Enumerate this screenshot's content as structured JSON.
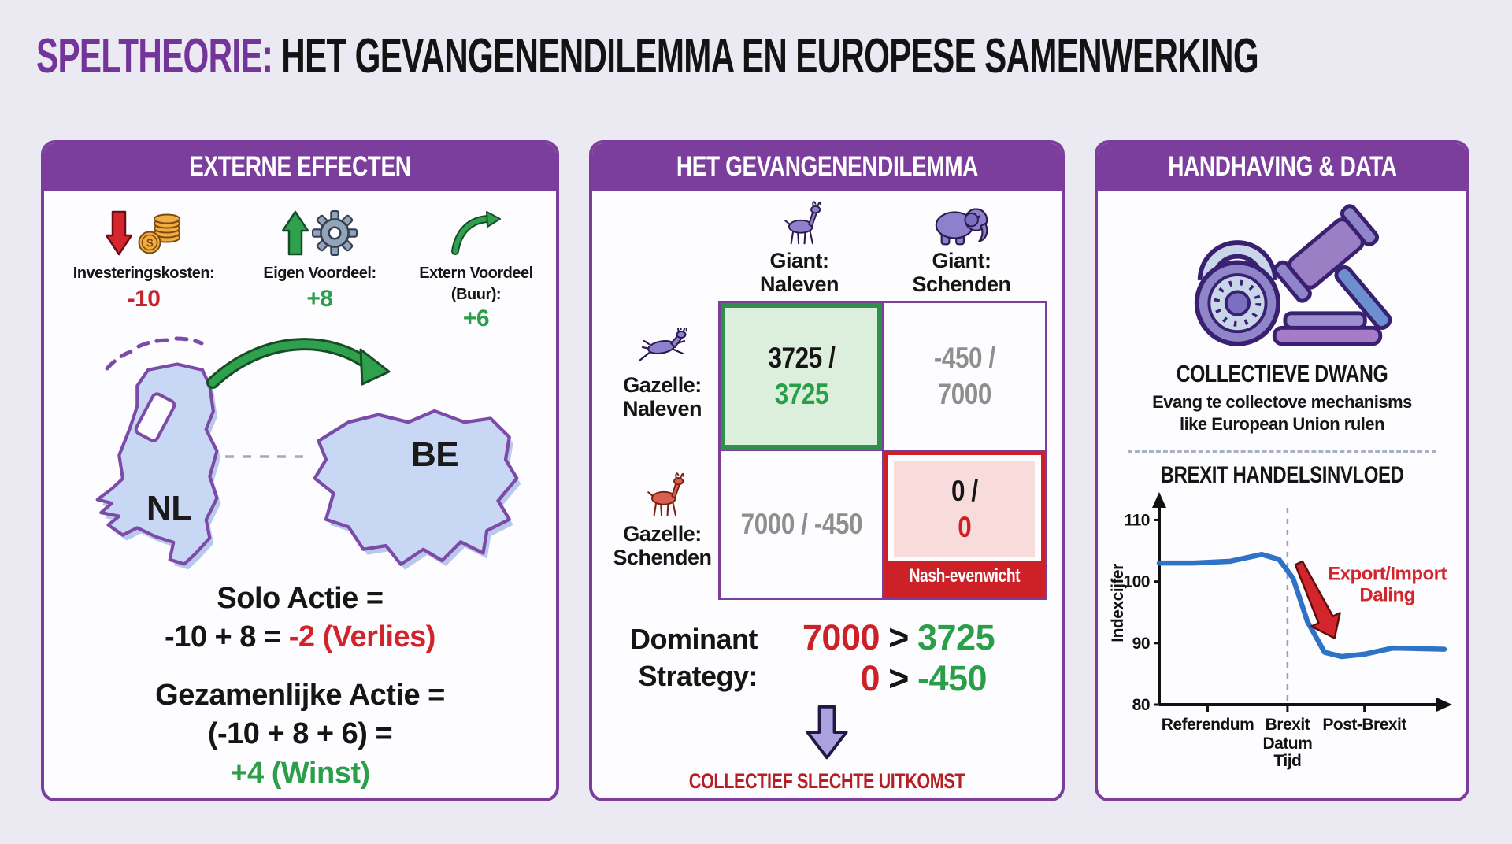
{
  "title": {
    "highlight": "SPELTHEORIE:",
    "rest": " HET GEVANGENENDILEMMA EN EUROPESE SAMENWERKING"
  },
  "colors": {
    "accent_purple": "#7B3E9D",
    "title_purple": "#74359A",
    "red": "#CE2127",
    "green": "#2B9E4A",
    "gray_payoff": "#8E8E8E",
    "cell_green_fill": "#DCEEDC",
    "cell_green_border": "#2F8F4C",
    "cell_red_fill": "#F8DBDB",
    "cell_red_border": "#CE2127",
    "line_blue": "#2E73C5",
    "map_fill": "#C8D8F4",
    "map_stroke": "#7C4BA8",
    "footer_red": "#B51F24",
    "background": "#EBE9F2"
  },
  "left_panel": {
    "header": "EXTERNE EFFECTEN",
    "factors": [
      {
        "label_line1": "Investeringskosten:",
        "label_line2": "",
        "value": "-10"
      },
      {
        "label_line1": "Eigen Voordeel:",
        "label_line2": "",
        "value": "+8"
      },
      {
        "label_line1": "Extern Voordeel",
        "label_line2": "(Buur):",
        "value": "+6"
      }
    ],
    "maps": {
      "left_label": "NL",
      "right_label": "BE"
    },
    "solo": {
      "line1": "Solo Actie =",
      "line2_black": "-10 + 8 = ",
      "line2_red": "-2 (Verlies)"
    },
    "joint": {
      "line1": "Gezamenlijke Actie =",
      "line2": "(-10 + 8 + 6) =",
      "line3_green": "+4 (Winst)"
    }
  },
  "middle_panel": {
    "header": "HET GEVANGENENDILEMMA",
    "col_headers": [
      {
        "line1": "Giant:",
        "line2": "Naleven"
      },
      {
        "line1": "Giant:",
        "line2": "Schenden"
      }
    ],
    "row_headers": [
      {
        "line1": "Gazelle:",
        "line2": "Naleven"
      },
      {
        "line1": "Gazelle:",
        "line2": "Schenden"
      }
    ],
    "cells": {
      "cc": {
        "line1": "3725 /",
        "line2": "3725"
      },
      "cd": {
        "line1": "-450 /",
        "line2": "7000"
      },
      "dc": {
        "line1": "7000 / -450"
      },
      "dd": {
        "line1": "0 /",
        "line2": "0",
        "banner": "Nash-evenwicht"
      }
    },
    "dominant": {
      "label_line1": "Dominant",
      "label_line2": "Strategy:",
      "rows": [
        {
          "left": "7000",
          "op": ">",
          "right": "3725"
        },
        {
          "left": "0",
          "op": ">",
          "right": "-450"
        }
      ]
    },
    "footer": "COLLECTIEF SLECHTE UITKOMST"
  },
  "right_panel": {
    "header": "HANDHAVING & DATA",
    "subheading": "COLLECTIEVE DWANG",
    "subtext_line1": "Evang te collectove mechanisms",
    "subtext_line2": "like European Union rulen",
    "chart_title": "BREXIT HANDELSINVLOED"
  },
  "chart_data": {
    "type": "line",
    "title": "BREXIT HANDELSINVLOED",
    "xlabel": "Tijd",
    "ylabel": "Indexcijfer",
    "ylim": [
      80,
      113
    ],
    "yticks": [
      110,
      100,
      90,
      80
    ],
    "x_categories": [
      "Referendum",
      "Brexit Datum",
      "Post-Brexit"
    ],
    "x_category_pos": [
      0.17,
      0.45,
      0.72
    ],
    "event_line_x": 0.45,
    "grid": false,
    "series": [
      {
        "name": "Indexcijfer",
        "color": "#2E73C5",
        "points": [
          [
            0,
            103
          ],
          [
            0.12,
            103
          ],
          [
            0.25,
            103.3
          ],
          [
            0.36,
            104.4
          ],
          [
            0.42,
            103.6
          ],
          [
            0.47,
            100.5
          ],
          [
            0.52,
            93.5
          ],
          [
            0.58,
            88.5
          ],
          [
            0.64,
            87.8
          ],
          [
            0.72,
            88.2
          ],
          [
            0.82,
            89.2
          ],
          [
            1,
            89
          ]
        ]
      }
    ],
    "annotation": {
      "from": [
        0.49,
        103
      ],
      "to": [
        0.615,
        90.8
      ],
      "color": "#D2262C",
      "outline": "#5E0E10",
      "label_pos": [
        0.8,
        100.3
      ],
      "label_lines": [
        "Export/Import",
        "Daling"
      ]
    }
  }
}
